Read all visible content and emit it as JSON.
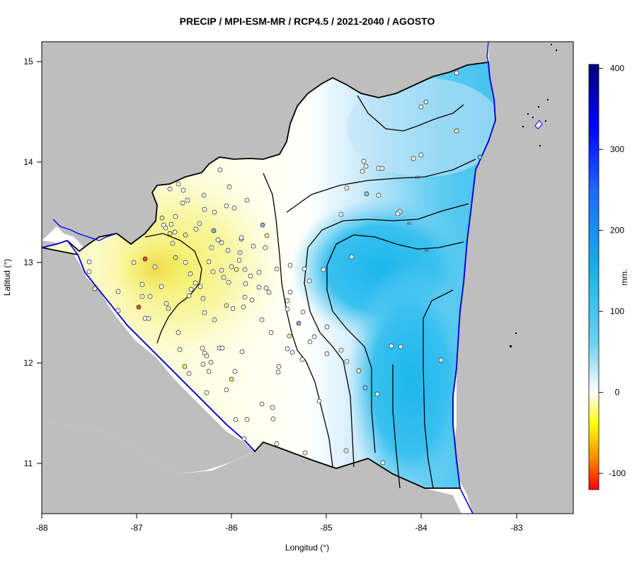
{
  "title": "PRECIP / MPI-ESM-MR / RCP4.5 / 2021-2040 / AGOSTO",
  "xlabel": "Longitud (°)",
  "ylabel": "Latitud (°)",
  "x_ticks": [
    "-88",
    "-87",
    "-86",
    "-85",
    "-84",
    "-83"
  ],
  "y_ticks": [
    "15",
    "14",
    "13",
    "12",
    "11"
  ],
  "colorbar": {
    "unit": "mm.",
    "ticks": [
      "400",
      "300",
      "200",
      "100",
      "0",
      "-100"
    ],
    "range": [
      -120,
      405
    ],
    "stops": [
      {
        "value": 405,
        "color": "#00007a"
      },
      {
        "value": 330,
        "color": "#0000ff"
      },
      {
        "value": 250,
        "color": "#1e68ff"
      },
      {
        "value": 150,
        "color": "#18b4e4"
      },
      {
        "value": 60,
        "color": "#6fd1f1"
      },
      {
        "value": 0,
        "color": "#ffffff"
      },
      {
        "value": -40,
        "color": "#ffff00"
      },
      {
        "value": -85,
        "color": "#ff8000"
      },
      {
        "value": -120,
        "color": "#ff0000"
      }
    ]
  },
  "colors": {
    "land_outside": "#bebebe",
    "sea": "#ffffff",
    "coastline": "#0000ff",
    "border": "#000000"
  },
  "contour_labels": [
    "20",
    "40",
    "60"
  ],
  "chart_data": {
    "type": "heatmap",
    "variable": "PRECIP",
    "model": "MPI-ESM-MR",
    "scenario": "RCP4.5",
    "period": "2021-2040",
    "month": "AGOSTO",
    "xlim": [
      -88,
      -82.4
    ],
    "ylim": [
      10.5,
      15.2
    ],
    "contour_levels": [
      20,
      40,
      60
    ],
    "grid": false,
    "legend_position": "right"
  }
}
